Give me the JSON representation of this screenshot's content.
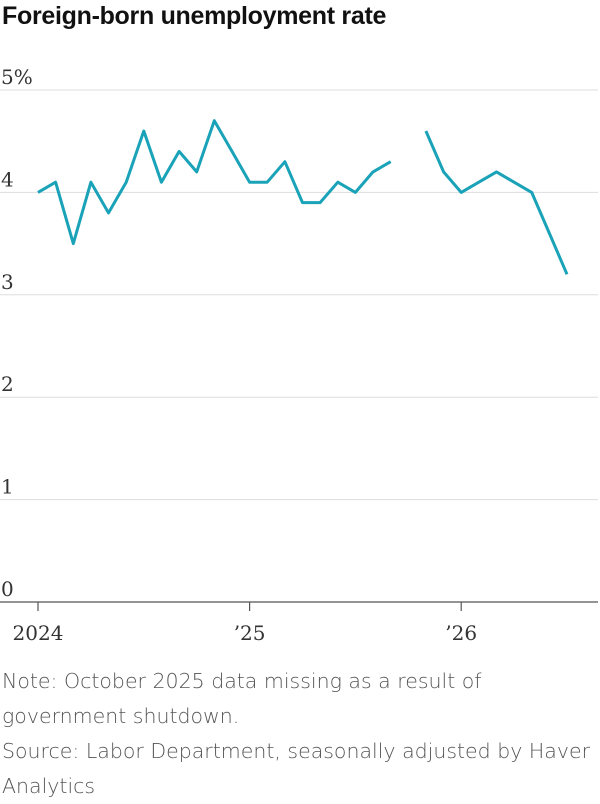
{
  "chart_data": {
    "type": "line",
    "title": "Foreign-born unemployment rate",
    "xlabel": "",
    "ylabel": "",
    "ylim": [
      0,
      5
    ],
    "yticks": [
      {
        "value": 0,
        "label": "0"
      },
      {
        "value": 1,
        "label": "1"
      },
      {
        "value": 2,
        "label": "2"
      },
      {
        "value": 3,
        "label": "3"
      },
      {
        "value": 4,
        "label": "4"
      },
      {
        "value": 5,
        "label": "5%"
      }
    ],
    "xticks": [
      {
        "date": "2024-01",
        "label": "2024"
      },
      {
        "date": "2025-01",
        "label": "’25"
      },
      {
        "date": "2026-01",
        "label": "’26"
      }
    ],
    "xlim": [
      "2024-01",
      "2026-07"
    ],
    "grid": true,
    "line_color": "#1aa3b8",
    "series": [
      {
        "name": "",
        "points": [
          {
            "date": "2024-01",
            "value": 4.0
          },
          {
            "date": "2024-02",
            "value": 4.1
          },
          {
            "date": "2024-03",
            "value": 3.5
          },
          {
            "date": "2024-04",
            "value": 4.1
          },
          {
            "date": "2024-05",
            "value": 3.8
          },
          {
            "date": "2024-06",
            "value": 4.1
          },
          {
            "date": "2024-07",
            "value": 4.6
          },
          {
            "date": "2024-08",
            "value": 4.1
          },
          {
            "date": "2024-09",
            "value": 4.4
          },
          {
            "date": "2024-10",
            "value": 4.2
          },
          {
            "date": "2024-11",
            "value": 4.7
          },
          {
            "date": "2024-12",
            "value": 4.4
          },
          {
            "date": "2025-01",
            "value": 4.1
          },
          {
            "date": "2025-02",
            "value": 4.1
          },
          {
            "date": "2025-03",
            "value": 4.3
          },
          {
            "date": "2025-04",
            "value": 3.9
          },
          {
            "date": "2025-05",
            "value": 3.9
          },
          {
            "date": "2025-06",
            "value": 4.1
          },
          {
            "date": "2025-07",
            "value": 4.0
          },
          {
            "date": "2025-08",
            "value": 4.2
          },
          {
            "date": "2025-09",
            "value": 4.3
          },
          {
            "date": "2025-10",
            "value": null
          },
          {
            "date": "2025-11",
            "value": 4.6
          },
          {
            "date": "2025-12",
            "value": 4.2
          },
          {
            "date": "2026-01",
            "value": 4.0
          },
          {
            "date": "2026-02",
            "value": 4.1
          },
          {
            "date": "2026-03",
            "value": 4.2
          },
          {
            "date": "2026-04",
            "value": 4.1
          },
          {
            "date": "2026-05",
            "value": 4.0
          },
          {
            "date": "2026-06",
            "value": 3.6
          },
          {
            "date": "2026-07",
            "value": 3.2
          }
        ]
      }
    ]
  },
  "footer": {
    "note": "Note: October 2025 data missing as a result of government shutdown.",
    "source": "Source: Labor Department, seasonally adjusted by Haver Analytics"
  }
}
